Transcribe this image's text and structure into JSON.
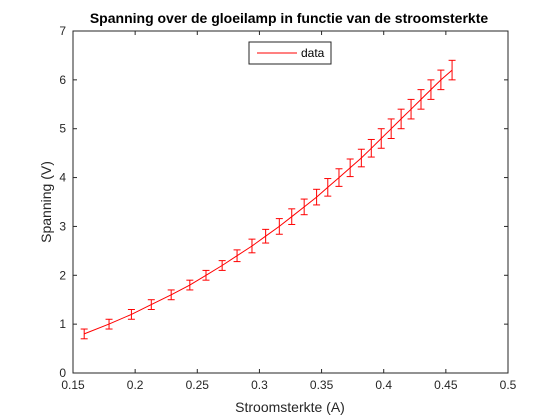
{
  "chart_data": {
    "type": "line",
    "title": "Spanning over de gloeilamp in functie van de stroomsterkte",
    "xlabel": "Stroomsterkte (A)",
    "ylabel": "Spanning (V)",
    "xlim": [
      0.15,
      0.5
    ],
    "ylim": [
      0,
      7
    ],
    "xticks": [
      0.15,
      0.2,
      0.25,
      0.3,
      0.35,
      0.4,
      0.45,
      0.5
    ],
    "xtick_labels": [
      "0.15",
      "0.2",
      "0.25",
      "0.3",
      "0.35",
      "0.4",
      "0.45",
      "0.5"
    ],
    "yticks": [
      0,
      1,
      2,
      3,
      4,
      5,
      6,
      7
    ],
    "ytick_labels": [
      "0",
      "1",
      "2",
      "3",
      "4",
      "5",
      "6",
      "7"
    ],
    "grid": false,
    "legend_position": "top-center",
    "series": [
      {
        "name": "data",
        "color": "#ff0000",
        "x": [
          0.159,
          0.179,
          0.197,
          0.213,
          0.229,
          0.244,
          0.257,
          0.27,
          0.282,
          0.294,
          0.305,
          0.316,
          0.326,
          0.336,
          0.346,
          0.355,
          0.364,
          0.373,
          0.382,
          0.39,
          0.398,
          0.406,
          0.414,
          0.422,
          0.43,
          0.438,
          0.446,
          0.455
        ],
        "y": [
          0.8,
          1.0,
          1.2,
          1.4,
          1.6,
          1.8,
          2.0,
          2.2,
          2.4,
          2.6,
          2.8,
          3.0,
          3.2,
          3.4,
          3.6,
          3.8,
          4.0,
          4.2,
          4.4,
          4.6,
          4.8,
          5.0,
          5.2,
          5.4,
          5.6,
          5.8,
          6.0,
          6.2
        ],
        "error": [
          0.1,
          0.1,
          0.1,
          0.1,
          0.1,
          0.1,
          0.1,
          0.1,
          0.12,
          0.14,
          0.14,
          0.16,
          0.16,
          0.16,
          0.16,
          0.18,
          0.18,
          0.18,
          0.18,
          0.18,
          0.2,
          0.2,
          0.2,
          0.2,
          0.2,
          0.2,
          0.2,
          0.2
        ]
      }
    ]
  }
}
